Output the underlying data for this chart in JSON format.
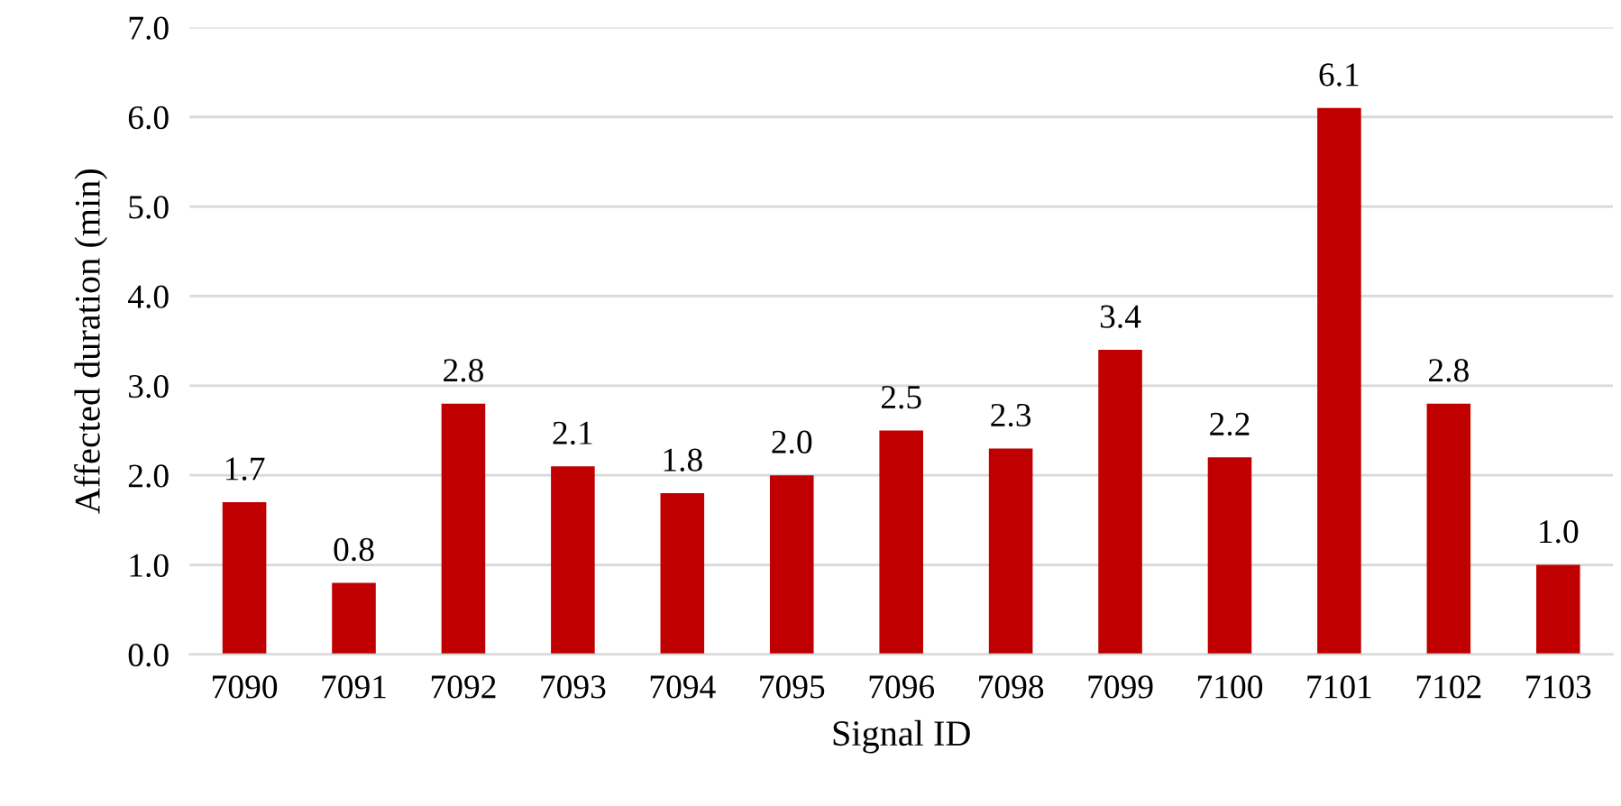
{
  "chart_data": {
    "type": "bar",
    "xlabel": "Signal ID",
    "ylabel": "Affected duration (min)",
    "categories": [
      "7090",
      "7091",
      "7092",
      "7093",
      "7094",
      "7095",
      "7096",
      "7098",
      "7099",
      "7100",
      "7101",
      "7102",
      "7103"
    ],
    "values": [
      1.7,
      0.8,
      2.8,
      2.1,
      1.8,
      2.0,
      2.5,
      2.3,
      3.4,
      2.2,
      6.1,
      2.8,
      1.0
    ],
    "color": "#c00000",
    "ylim": [
      0,
      7
    ],
    "yticks": [
      {
        "value": 0,
        "label": "0.0"
      },
      {
        "value": 1,
        "label": "1.0"
      },
      {
        "value": 2,
        "label": "2.0"
      },
      {
        "value": 3,
        "label": "3.0"
      },
      {
        "value": 4,
        "label": "4.0"
      },
      {
        "value": 5,
        "label": "5.0"
      },
      {
        "value": 6,
        "label": "6.0"
      },
      {
        "value": 7,
        "label": "7.0"
      }
    ],
    "value_labels": [
      "1.7",
      "0.8",
      "2.8",
      "2.1",
      "1.8",
      "2.0",
      "2.5",
      "2.3",
      "3.4",
      "2.2",
      "6.1",
      "2.8",
      "1.0"
    ],
    "grid": "y",
    "legend": false
  }
}
